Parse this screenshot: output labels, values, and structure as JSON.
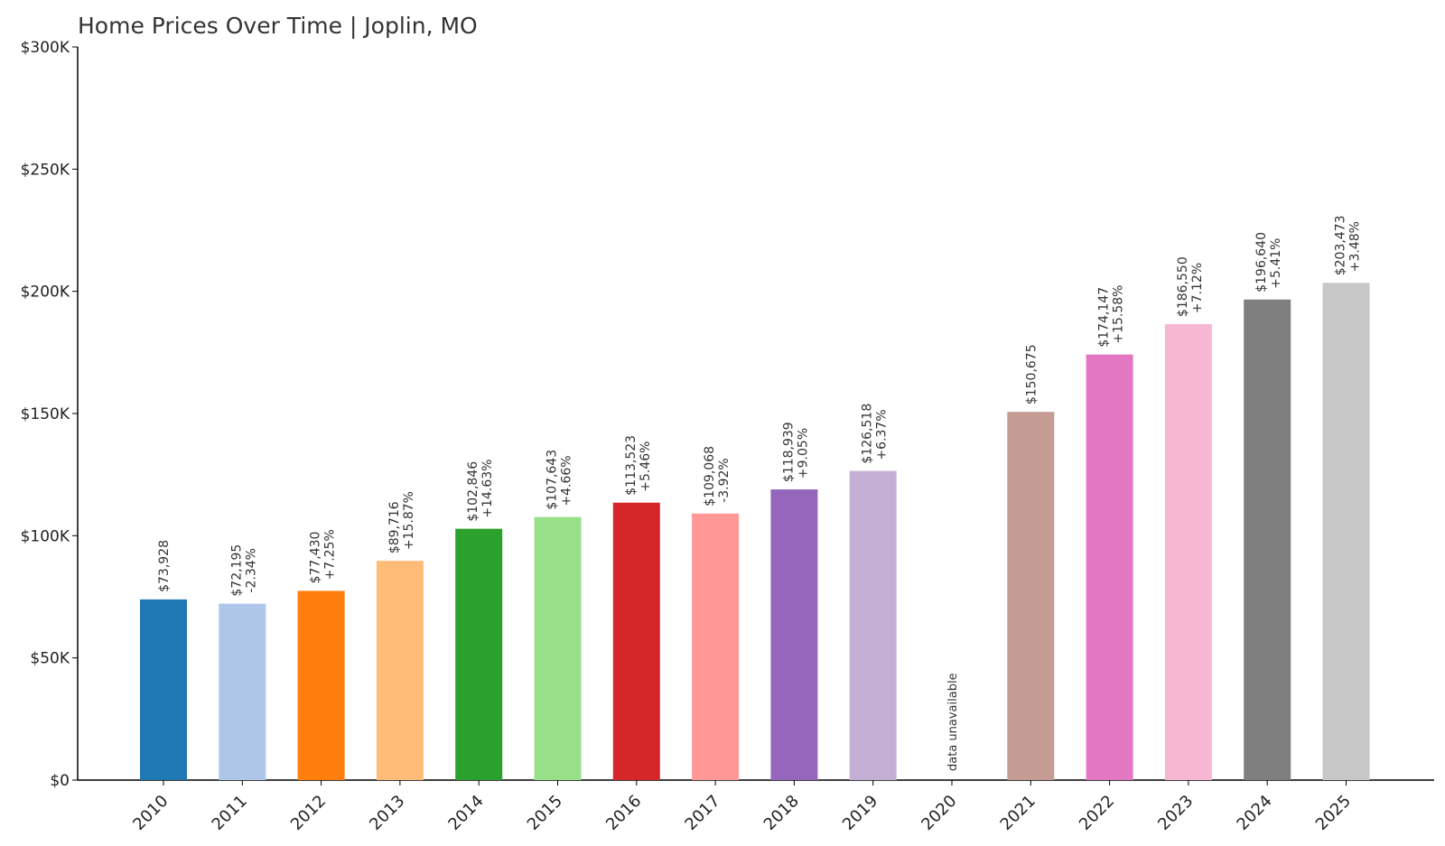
{
  "title": "Home Prices Over Time | Joplin, MO",
  "chart_data": {
    "type": "bar",
    "title": "Home Prices Over Time | Joplin, MO",
    "xlabel": "",
    "ylabel": "",
    "ylim": [
      0,
      300000
    ],
    "y_ticks": [
      {
        "value": 0,
        "label": "$0"
      },
      {
        "value": 50000,
        "label": "$50K"
      },
      {
        "value": 100000,
        "label": "$100K"
      },
      {
        "value": 150000,
        "label": "$150K"
      },
      {
        "value": 200000,
        "label": "$200K"
      },
      {
        "value": 250000,
        "label": "$250K"
      },
      {
        "value": 300000,
        "label": "$300K"
      }
    ],
    "grid": false,
    "legend": "none",
    "categories": [
      "2010",
      "2011",
      "2012",
      "2013",
      "2014",
      "2015",
      "2016",
      "2017",
      "2018",
      "2019",
      "2020",
      "2021",
      "2022",
      "2023",
      "2024",
      "2025"
    ],
    "values": [
      73928,
      72195,
      77430,
      89716,
      102846,
      107643,
      113523,
      109068,
      118939,
      126518,
      null,
      150675,
      174147,
      186550,
      196640,
      203473
    ],
    "value_labels": [
      "$73,928",
      "$72,195",
      "$77,430",
      "$89,716",
      "$102,846",
      "$107,643",
      "$113,523",
      "$109,068",
      "$118,939",
      "$126,518",
      "",
      "$150,675",
      "$174,147",
      "$186,550",
      "$196,640",
      "$203,473"
    ],
    "change_labels": [
      "",
      "-2.34%",
      "+7.25%",
      "+15.87%",
      "+14.63%",
      "+4.66%",
      "+5.46%",
      "-3.92%",
      "+9.05%",
      "+6.37%",
      "",
      "",
      "+15.58%",
      "+7.12%",
      "+5.41%",
      "+3.48%"
    ],
    "missing_label": "data unavailable",
    "colors": [
      "#1f77b4",
      "#aec7e8",
      "#ff7f0e",
      "#ffbb78",
      "#2ca02c",
      "#98df8a",
      "#d62728",
      "#ff9896",
      "#9467bd",
      "#c5b0d5",
      "#8c564b",
      "#c49c94",
      "#e377c2",
      "#f7b6d2",
      "#7f7f7f",
      "#c7c7c7"
    ]
  }
}
